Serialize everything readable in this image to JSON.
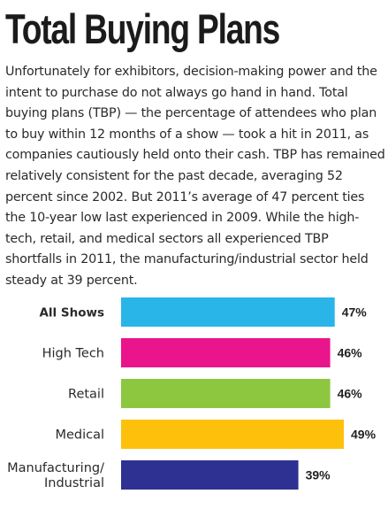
{
  "title": "Total Buying Plans",
  "body": "Unfortunately for exhibitors, decision-making power and the intent to purchase do not always go hand in hand. Total buying plans (TBP) — the percentage of attendees who plan to buy within 12 months of a show — took a hit in 2011, as companies cautiously held onto their cash. TBP has remained relatively consistent for the past decade, averaging 52 percent since 2002. But 2011’s average of 47 percent ties the 10-year low last experienced in 2009. While the high-tech, retail, and medical sectors all experienced TBP shortfalls in 2011, the manufacturing/industrial sector held steady at 39 percent.",
  "colors": {
    "All Shows": "#29b5e8",
    "High Tech": "#ea148c",
    "Retail": "#8dc63f",
    "Medical": "#fdc10b",
    "Manufacturing/ Industrial": "#2e3192"
  },
  "chart_data": {
    "type": "bar",
    "orientation": "horizontal",
    "categories": [
      "All Shows",
      "High Tech",
      "Retail",
      "Medical",
      "Manufacturing/ Industrial"
    ],
    "category_lines": [
      [
        "All Shows"
      ],
      [
        "High Tech"
      ],
      [
        "Retail"
      ],
      [
        "Medical"
      ],
      [
        "Manufacturing/",
        "Industrial"
      ]
    ],
    "values": [
      47,
      46,
      46,
      49,
      39
    ],
    "value_labels": [
      "47%",
      "46%",
      "46%",
      "49%",
      "39%"
    ],
    "bold_categories": [
      "All Shows"
    ],
    "title": "",
    "xlabel": "",
    "ylabel": "",
    "xlim": [
      0,
      49
    ],
    "grid": false,
    "legend": "none"
  }
}
